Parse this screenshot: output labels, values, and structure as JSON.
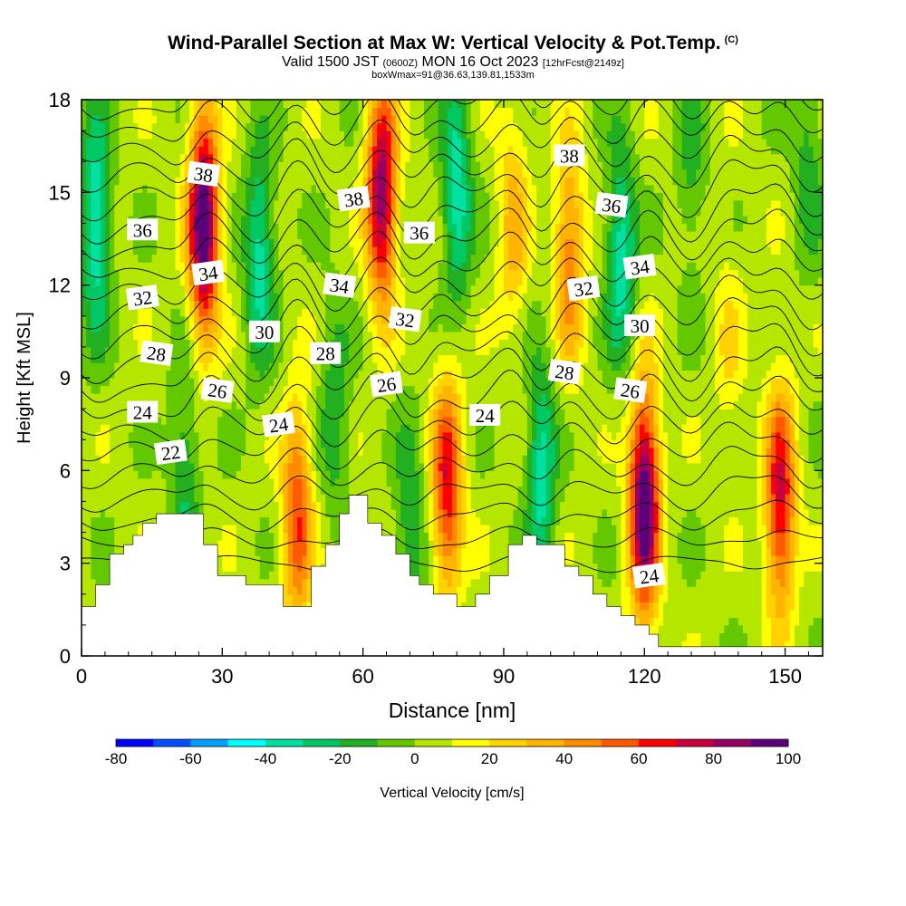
{
  "title": {
    "main": "Wind-Parallel Section at Max W: Vertical Velocity & Pot.Temp.",
    "copyright": "(C)",
    "valid_prefix": "Valid 1500 JST",
    "valid_utc": "(0600Z)",
    "valid_date": "MON 16 Oct 2023",
    "forecast": "[12hrFcst@2149z]",
    "box_info": "boxWmax=91@36.63,139.81,1533m"
  },
  "chart_data": {
    "type": "heatmap",
    "description": "Vertical cross-section of vertical velocity (filled) with potential temperature contours and terrain",
    "xlabel": "Distance [nm]",
    "ylabel": "Height [Kft MSL]",
    "xlim": [
      0,
      158
    ],
    "ylim": [
      0,
      18
    ],
    "x_ticks": [
      0,
      30,
      60,
      90,
      120,
      150
    ],
    "y_ticks": [
      0,
      3,
      6,
      9,
      12,
      15,
      18
    ],
    "colorbar": {
      "label": "Vertical Velocity [cm/s]",
      "tick_labels": [
        "-80",
        "-60",
        "-40",
        "-20",
        "0",
        "20",
        "40",
        "60",
        "80",
        "100"
      ],
      "levels": [
        -80,
        -70,
        -60,
        -50,
        -40,
        -30,
        -20,
        -10,
        0,
        10,
        20,
        30,
        40,
        50,
        60,
        70,
        80,
        90,
        100
      ],
      "colors": [
        "#0000ff",
        "#0050ff",
        "#00a0ff",
        "#00ffff",
        "#00e0a0",
        "#00c864",
        "#22b022",
        "#64c800",
        "#b4e600",
        "#ffff00",
        "#ffd200",
        "#ffb400",
        "#ff8c00",
        "#ff5a00",
        "#ff0000",
        "#c8003c",
        "#960064",
        "#5a0078"
      ]
    },
    "updrafts": [
      {
        "x": 26,
        "y": 14,
        "w": 100
      },
      {
        "x": 64,
        "y": 15,
        "w": 85
      },
      {
        "x": 104,
        "y": 13,
        "w": 45
      },
      {
        "x": 120,
        "y": 5,
        "w": 100
      },
      {
        "x": 149,
        "y": 5,
        "w": 70
      },
      {
        "x": 78,
        "y": 5.5,
        "w": 65
      },
      {
        "x": 46,
        "y": 4.5,
        "w": 55
      },
      {
        "x": 92,
        "y": 14,
        "w": 30
      },
      {
        "x": 138,
        "y": 10,
        "w": 15
      }
    ],
    "downdrafts": [
      {
        "x": 3,
        "y": 14,
        "w": -45
      },
      {
        "x": 38,
        "y": 13,
        "w": -40
      },
      {
        "x": 80,
        "y": 15,
        "w": -42
      },
      {
        "x": 98,
        "y": 6,
        "w": -40
      },
      {
        "x": 115,
        "y": 13,
        "w": -42
      },
      {
        "x": 22,
        "y": 6,
        "w": -25
      },
      {
        "x": 70,
        "y": 4,
        "w": -25
      },
      {
        "x": 54,
        "y": 8,
        "w": -22
      },
      {
        "x": 155,
        "y": 16,
        "w": -20
      },
      {
        "x": 130,
        "y": 16,
        "w": -18
      }
    ],
    "terrain": {
      "x": [
        0,
        3,
        3,
        6,
        6,
        9,
        9,
        11,
        11,
        13,
        13,
        16,
        16,
        20,
        20,
        26,
        26,
        29,
        29,
        31,
        31,
        35,
        35,
        40,
        40,
        43,
        43,
        49,
        49,
        52,
        52,
        55,
        55,
        57,
        57,
        61,
        61,
        64,
        64,
        67,
        67,
        70,
        70,
        72,
        72,
        75,
        75,
        80,
        80,
        84,
        84,
        87,
        87,
        91,
        91,
        94,
        94,
        97,
        97,
        103,
        103,
        106,
        106,
        109,
        109,
        112,
        112,
        115,
        115,
        118,
        118,
        121,
        121,
        123,
        123,
        158
      ],
      "y": [
        1.6,
        1.6,
        2.3,
        2.3,
        3.3,
        3.3,
        3.6,
        3.6,
        3.9,
        3.9,
        4.3,
        4.3,
        4.6,
        4.6,
        4.6,
        4.6,
        3.6,
        3.6,
        2.6,
        2.6,
        2.6,
        2.6,
        2.3,
        2.3,
        2.3,
        2.3,
        1.6,
        1.6,
        2.9,
        2.9,
        3.6,
        3.6,
        4.6,
        4.6,
        5.2,
        5.2,
        4.3,
        4.3,
        3.9,
        3.9,
        3.3,
        3.3,
        2.6,
        2.6,
        2.3,
        2.3,
        2.0,
        2.0,
        1.6,
        1.6,
        2.0,
        2.0,
        2.6,
        2.6,
        3.6,
        3.6,
        3.9,
        3.9,
        3.6,
        3.6,
        2.9,
        2.9,
        2.6,
        2.6,
        2.0,
        2.0,
        1.6,
        1.6,
        1.3,
        1.3,
        1.0,
        1.0,
        0.7,
        0.7,
        0.3,
        0.3
      ]
    },
    "theta_levels": [
      20,
      21,
      22,
      23,
      24,
      25,
      26,
      27,
      28,
      29,
      30,
      31,
      32,
      33,
      34,
      35,
      36,
      37,
      38,
      39,
      40
    ],
    "contour_labels": [
      {
        "text": "22",
        "x": 19,
        "y": 6.6
      },
      {
        "text": "24",
        "x": 13,
        "y": 7.9
      },
      {
        "text": "28",
        "x": 16,
        "y": 9.8
      },
      {
        "text": "32",
        "x": 13,
        "y": 11.6
      },
      {
        "text": "36",
        "x": 13,
        "y": 13.8
      },
      {
        "text": "38",
        "x": 26,
        "y": 15.6
      },
      {
        "text": "34",
        "x": 27,
        "y": 12.4
      },
      {
        "text": "30",
        "x": 39,
        "y": 10.5
      },
      {
        "text": "26",
        "x": 29,
        "y": 8.6
      },
      {
        "text": "24",
        "x": 42,
        "y": 7.5
      },
      {
        "text": "28",
        "x": 52,
        "y": 9.8
      },
      {
        "text": "34",
        "x": 55,
        "y": 12.0
      },
      {
        "text": "38",
        "x": 58,
        "y": 14.8
      },
      {
        "text": "36",
        "x": 72,
        "y": 13.7
      },
      {
        "text": "32",
        "x": 69,
        "y": 10.9
      },
      {
        "text": "26",
        "x": 65,
        "y": 8.8
      },
      {
        "text": "24",
        "x": 86,
        "y": 7.8
      },
      {
        "text": "28",
        "x": 103,
        "y": 9.2
      },
      {
        "text": "32",
        "x": 107,
        "y": 11.9
      },
      {
        "text": "38",
        "x": 104,
        "y": 16.2
      },
      {
        "text": "36",
        "x": 113,
        "y": 14.6
      },
      {
        "text": "34",
        "x": 119,
        "y": 12.6
      },
      {
        "text": "30",
        "x": 119,
        "y": 10.7
      },
      {
        "text": "26",
        "x": 117,
        "y": 8.6
      },
      {
        "text": "24",
        "x": 121,
        "y": 2.6
      }
    ]
  },
  "colors": {
    "background": "#ffffff",
    "terrain": "#ffffff",
    "contour": "#000000",
    "text": "#000000"
  }
}
